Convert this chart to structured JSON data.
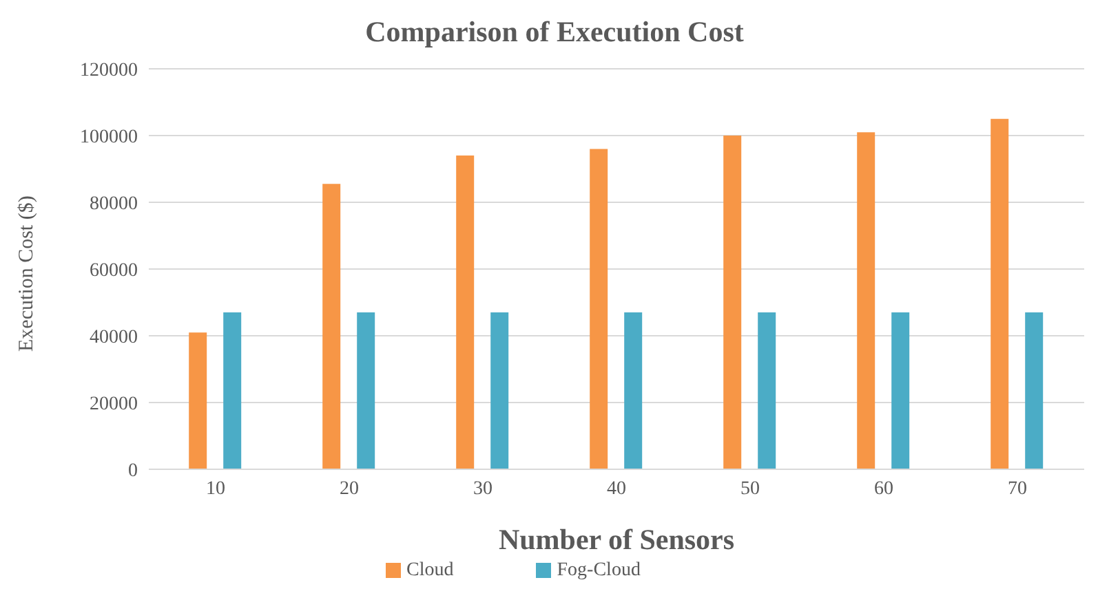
{
  "chart_data": {
    "type": "bar",
    "title": "Comparison of Execution Cost",
    "xlabel": "Number of Sensors",
    "ylabel": "Execution Cost ($)",
    "categories": [
      "10",
      "20",
      "30",
      "40",
      "50",
      "60",
      "70"
    ],
    "series": [
      {
        "name": "Cloud",
        "color": "#f79646",
        "values": [
          41000,
          85500,
          94000,
          96000,
          100000,
          101000,
          105000
        ]
      },
      {
        "name": "Fog-Cloud",
        "color": "#4bacc6",
        "values": [
          47000,
          47000,
          47000,
          47000,
          47000,
          47000,
          47000
        ]
      }
    ],
    "ylim": [
      0,
      120000
    ],
    "yticks": [
      0,
      20000,
      40000,
      60000,
      80000,
      100000,
      120000
    ],
    "grid": "y",
    "legend": "bottom"
  }
}
